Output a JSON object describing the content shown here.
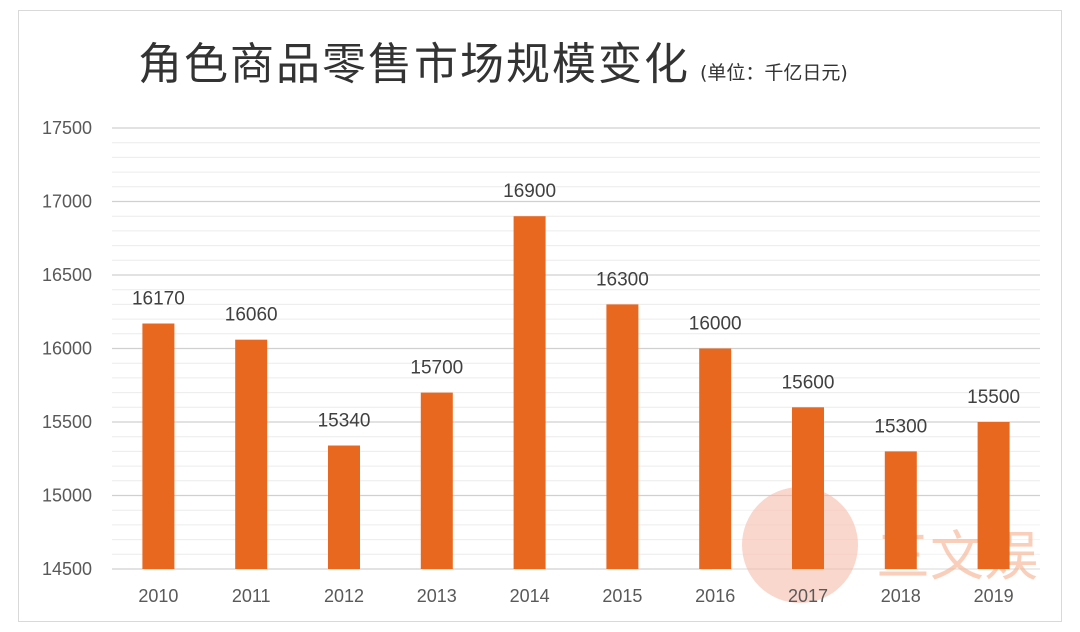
{
  "chart_data": {
    "type": "bar",
    "title": "角色商品零售市场规模变化",
    "subtitle": "(单位：千亿日元)",
    "categories": [
      "2010",
      "2011",
      "2012",
      "2013",
      "2014",
      "2015",
      "2016",
      "2017",
      "2018",
      "2019"
    ],
    "values": [
      16170,
      16060,
      15340,
      15700,
      16900,
      16300,
      16000,
      15600,
      15300,
      15500
    ],
    "ylim": [
      14500,
      17500
    ],
    "yticks": [
      "14500",
      "15000",
      "15500",
      "16000",
      "16500",
      "17000",
      "17500"
    ],
    "grid": true,
    "legend": "none",
    "bar_color": "#E8681F",
    "watermark": "三文娱"
  }
}
